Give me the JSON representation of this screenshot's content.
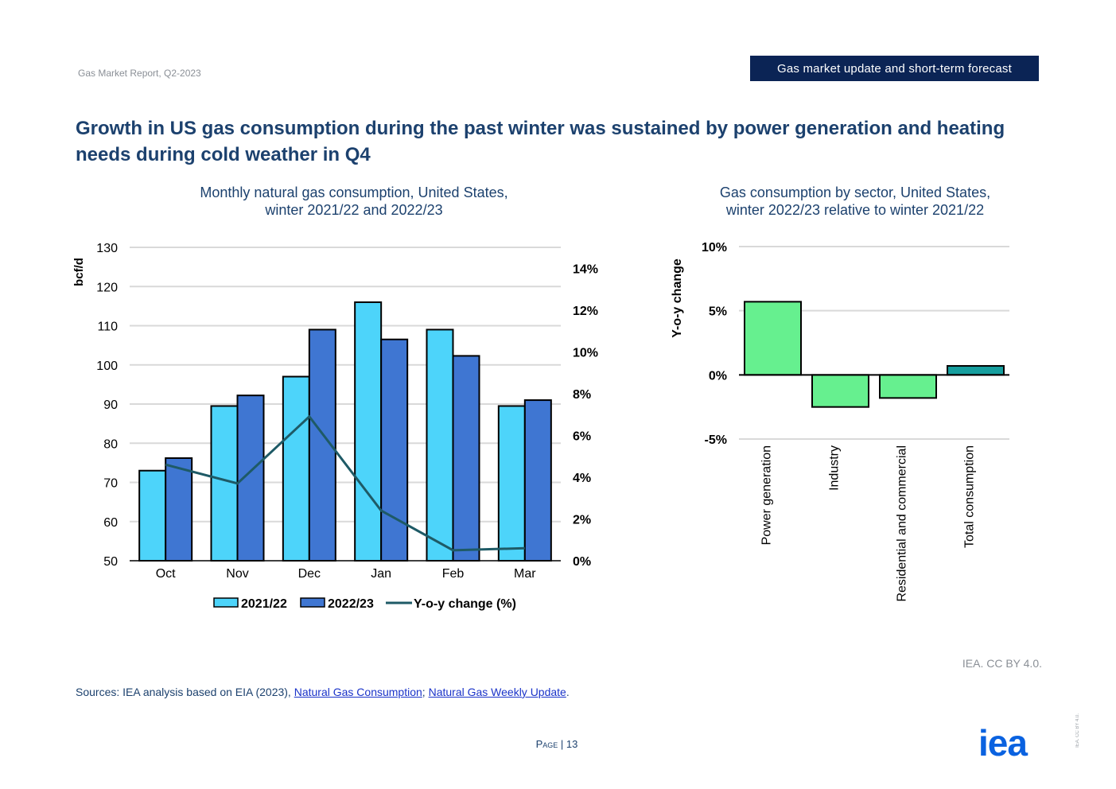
{
  "header": {
    "report_name": "Gas Market Report, Q2-2023",
    "section": "Gas market update and short-term forecast"
  },
  "headline": "Growth in US gas consumption during the past winter was sustained by power generation and heating needs during cold weather in Q4",
  "colors": {
    "navy": "#0b2455",
    "title_blue": "#1c416e",
    "series_2021": "#4dd4fa",
    "series_2022": "#3f76d2",
    "yoy_line": "#1e5a66",
    "sector_green": "#66f08f",
    "sector_teal": "#169e9e",
    "link_blue": "#1a33c9",
    "logo_blue": "#0a62e0"
  },
  "chart_data": [
    {
      "type": "bar",
      "title_line1": "Monthly natural gas consumption, United States,",
      "title_line2": "winter 2021/22 and 2022/23",
      "ylabel": "bcf/d",
      "ylim": [
        50,
        130
      ],
      "yticks": [
        "130",
        "120",
        "110",
        "100",
        "90",
        "80",
        "70",
        "60",
        "50"
      ],
      "y2lim": [
        0,
        15
      ],
      "y2ticks": [
        "14%",
        "12%",
        "10%",
        "8%",
        "6%",
        "4%",
        "2%",
        "0%"
      ],
      "categories": [
        "Oct",
        "Nov",
        "Dec",
        "Jan",
        "Feb",
        "Mar"
      ],
      "series": [
        {
          "name": "2021/22",
          "values": [
            73,
            89.5,
            97,
            116,
            109,
            89.5
          ]
        },
        {
          "name": "2022/23",
          "values": [
            76.2,
            92.2,
            109,
            106.5,
            102.3,
            91
          ]
        },
        {
          "name": "Y-o-y change (%)",
          "axis": "secondary",
          "values": [
            4.6,
            3.7,
            6.9,
            2.4,
            0.5,
            0.6
          ]
        }
      ],
      "legend": [
        "2021/22",
        "2022/23",
        "Y-o-y change (%)"
      ]
    },
    {
      "type": "bar",
      "title_line1": "Gas consumption by sector, United States,",
      "title_line2": "winter 2022/23 relative to winter 2021/22",
      "ylabel": "Y-o-y change",
      "ylim": [
        -5,
        10
      ],
      "yticks": [
        "10%",
        "5%",
        "0%",
        "-5%"
      ],
      "categories": [
        "Power generation",
        "Industry",
        "Residential and commercial",
        "Total consumption"
      ],
      "values": [
        5.7,
        -2.5,
        -1.8,
        0.7
      ]
    }
  ],
  "credit": "IEA. CC BY 4.0.",
  "sources": {
    "prefix": "Sources: IEA analysis based on EIA (2023), ",
    "link1": "Natural Gas Consumption",
    "separator": "; ",
    "link2": "Natural Gas Weekly Update",
    "suffix": "."
  },
  "footer": {
    "page_label": "Page",
    "page_number": "13",
    "logo_text": "iea",
    "vertical_credit": "IEA. CC BY 4.0."
  }
}
